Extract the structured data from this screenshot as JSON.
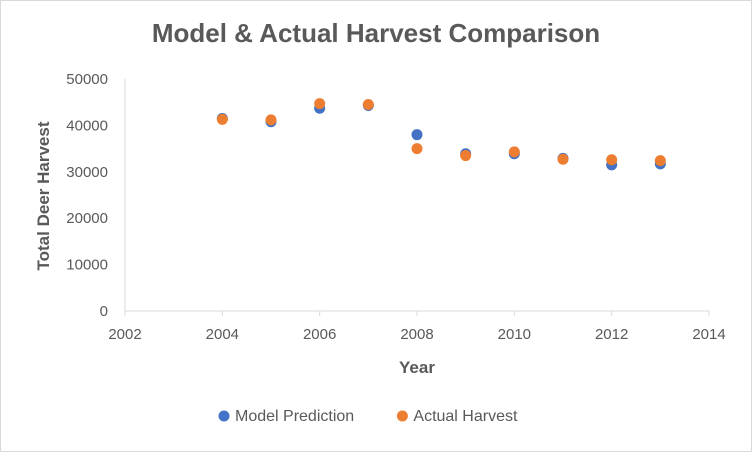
{
  "chart_data": {
    "type": "scatter",
    "title": "Model & Actual Harvest Comparison",
    "xlabel": "Year",
    "ylabel": "Total Deer Harvest",
    "xlim": [
      2002,
      2014
    ],
    "ylim": [
      0,
      50000
    ],
    "xticks": [
      2002,
      2004,
      2006,
      2008,
      2010,
      2012,
      2014
    ],
    "yticks": [
      0,
      10000,
      20000,
      30000,
      40000,
      50000
    ],
    "grid": false,
    "legend": "bottom",
    "series": [
      {
        "name": "Model Prediction",
        "color": "#4472c4",
        "points": [
          [
            2004,
            41500
          ],
          [
            2005,
            40800
          ],
          [
            2006,
            43700
          ],
          [
            2007,
            44300
          ],
          [
            2008,
            38000
          ],
          [
            2009,
            33900
          ],
          [
            2010,
            33900
          ],
          [
            2011,
            32900
          ],
          [
            2012,
            31500
          ],
          [
            2013,
            31700
          ]
        ]
      },
      {
        "name": "Actual Harvest",
        "color": "#ed7d31",
        "points": [
          [
            2004,
            41300
          ],
          [
            2005,
            41200
          ],
          [
            2006,
            44700
          ],
          [
            2007,
            44500
          ],
          [
            2008,
            35000
          ],
          [
            2009,
            33500
          ],
          [
            2010,
            34300
          ],
          [
            2011,
            32700
          ],
          [
            2012,
            32600
          ],
          [
            2013,
            32400
          ]
        ]
      }
    ]
  }
}
